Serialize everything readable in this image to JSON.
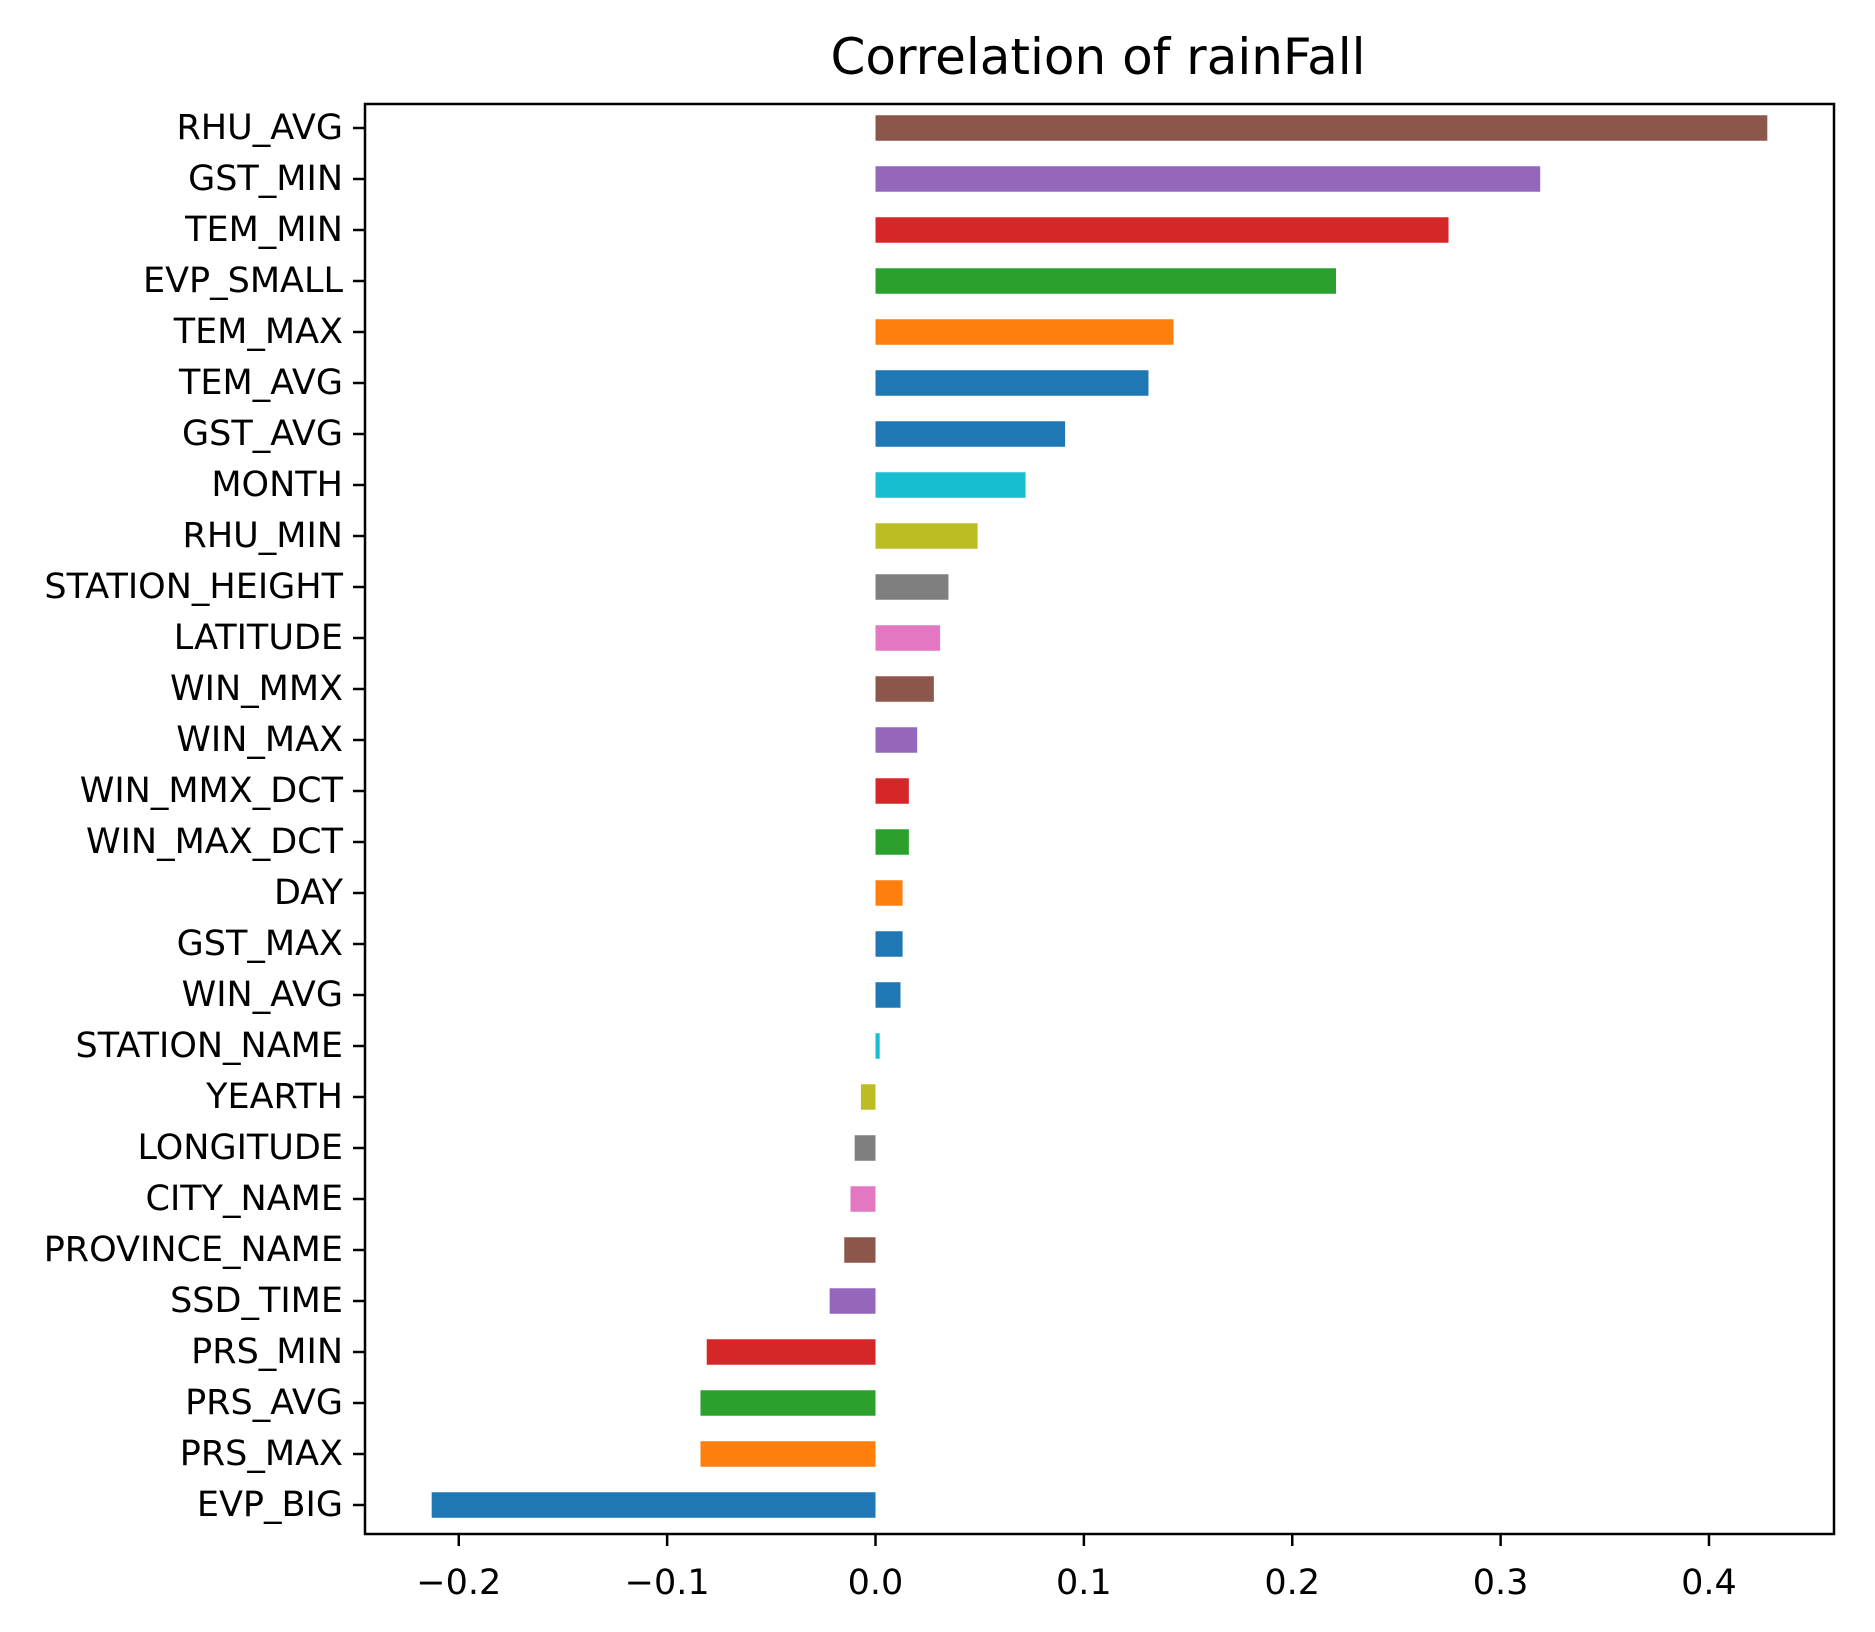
{
  "chart_data": {
    "type": "bar",
    "orientation": "horizontal",
    "title": "Correlation of rainFall",
    "xlabel": "",
    "ylabel": "",
    "xlim": [
      -0.245,
      0.46
    ],
    "grid": false,
    "legend": "none",
    "x_ticks": [
      -0.2,
      -0.1,
      0.0,
      0.1,
      0.2,
      0.3,
      0.4
    ],
    "x_tick_labels": [
      "−0.2",
      "−0.1",
      "0.0",
      "0.1",
      "0.2",
      "0.3",
      "0.4"
    ],
    "categories": [
      "RHU_AVG",
      "GST_MIN",
      "TEM_MIN",
      "EVP_SMALL",
      "TEM_MAX",
      "TEM_AVG",
      "GST_AVG",
      "MONTH",
      "RHU_MIN",
      "STATION_HEIGHT",
      "LATITUDE",
      "WIN_MMX",
      "WIN_MAX",
      "WIN_MMX_DCT",
      "WIN_MAX_DCT",
      "DAY",
      "GST_MAX",
      "WIN_AVG",
      "STATION_NAME",
      "YEARTH",
      "LONGITUDE",
      "CITY_NAME",
      "PROVINCE_NAME",
      "SSD_TIME",
      "PRS_MIN",
      "PRS_AVG",
      "PRS_MAX",
      "EVP_BIG"
    ],
    "values": [
      0.428,
      0.319,
      0.275,
      0.221,
      0.143,
      0.131,
      0.091,
      0.072,
      0.049,
      0.035,
      0.031,
      0.028,
      0.02,
      0.016,
      0.016,
      0.013,
      0.013,
      0.012,
      0.002,
      -0.007,
      -0.01,
      -0.012,
      -0.015,
      -0.022,
      -0.081,
      -0.084,
      -0.084,
      -0.213
    ],
    "colors": [
      "#8c564b",
      "#9467bd",
      "#d62728",
      "#2ca02c",
      "#ff7f0e",
      "#1f77b4",
      "#1f77b4",
      "#17becf",
      "#bcbd22",
      "#7f7f7f",
      "#e377c2",
      "#8c564b",
      "#9467bd",
      "#d62728",
      "#2ca02c",
      "#ff7f0e",
      "#1f77b4",
      "#1f77b4",
      "#17becf",
      "#bcbd22",
      "#7f7f7f",
      "#e377c2",
      "#8c564b",
      "#9467bd",
      "#d62728",
      "#2ca02c",
      "#ff7f0e",
      "#1f77b4"
    ]
  }
}
